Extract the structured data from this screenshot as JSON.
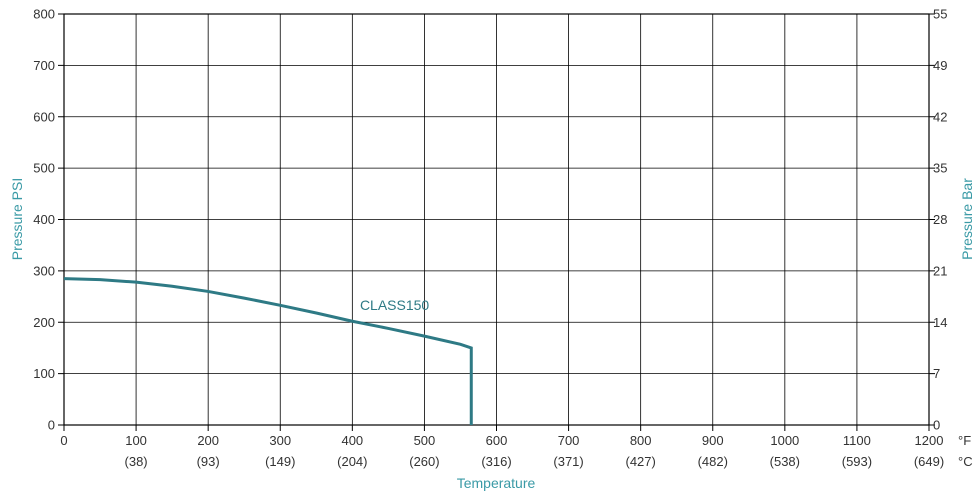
{
  "chart_data": {
    "type": "line",
    "xlabel": "Temperature",
    "ylabel_left": "Pressure PSI",
    "ylabel_right": "Pressure Bar",
    "x_unit_primary": "°F",
    "x_unit_secondary": "°C",
    "xlim": [
      0,
      1200
    ],
    "ylim": [
      0,
      800
    ],
    "grid": true,
    "x_ticks": [
      0,
      100,
      200,
      300,
      400,
      500,
      600,
      700,
      800,
      900,
      1000,
      1100,
      1200
    ],
    "x_ticks_secondary": [
      "",
      "(38)",
      "(93)",
      "(149)",
      "(204)",
      "(260)",
      "(316)",
      "(371)",
      "(427)",
      "(482)",
      "(538)",
      "(593)",
      "(649)"
    ],
    "y_ticks_left": [
      0,
      100,
      200,
      300,
      400,
      500,
      600,
      700,
      800
    ],
    "y_ticks_right": [
      "0",
      "7",
      "14",
      "21",
      "28",
      "35",
      "42",
      "49",
      "55"
    ],
    "colors": {
      "series": "#2e7a85",
      "axis_title": "#3a9aa6",
      "grid": "#000000"
    },
    "series": [
      {
        "name": "CLASS150",
        "x": [
          0,
          50,
          100,
          150,
          200,
          250,
          300,
          350,
          400,
          450,
          500,
          550,
          565,
          565
        ],
        "y": [
          285,
          283,
          278,
          270,
          260,
          247,
          233,
          218,
          202,
          188,
          173,
          157,
          150,
          0
        ]
      }
    ],
    "annotations": [
      {
        "text": "CLASS150",
        "x": 405,
        "y": 220
      }
    ]
  }
}
